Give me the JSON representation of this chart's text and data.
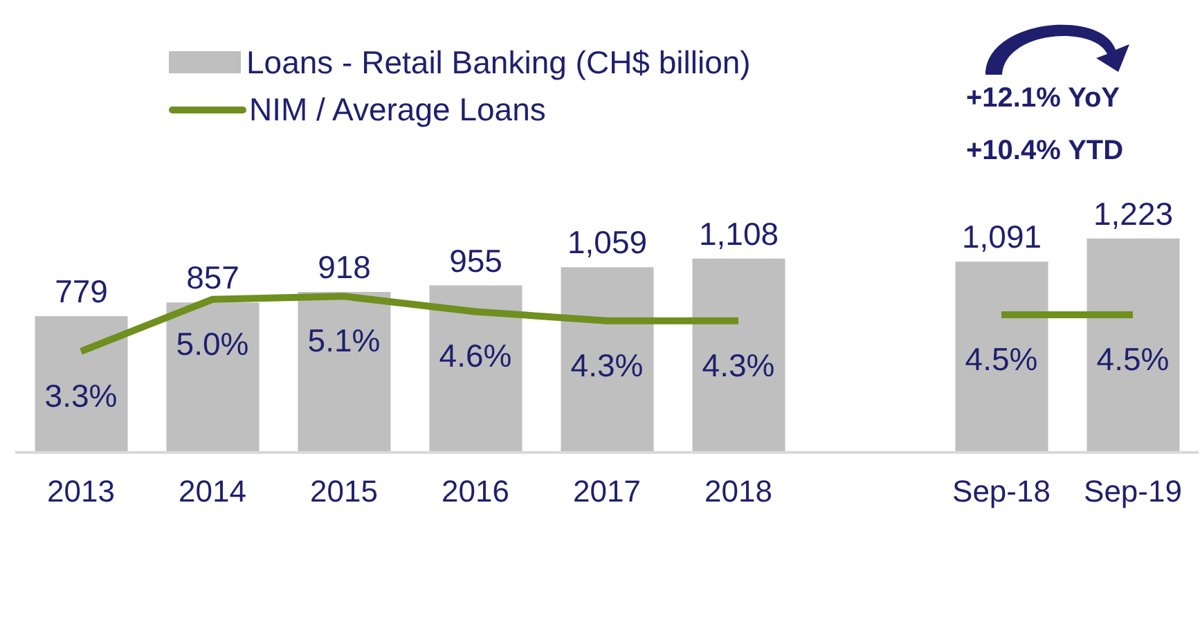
{
  "chart_data": {
    "type": "bar",
    "categories": [
      "2013",
      "2014",
      "2015",
      "2016",
      "2017",
      "2018",
      null,
      "Sep-18",
      "Sep-19"
    ],
    "series": [
      {
        "name": "Loans - Retail Banking (CH$ billion)",
        "color": "#bfbfbf",
        "values": [
          779,
          857,
          918,
          955,
          1059,
          1108,
          null,
          1091,
          1223
        ],
        "value_labels": [
          "779",
          "857",
          "918",
          "955",
          "1,059",
          "1,108",
          null,
          "1,091",
          "1,223"
        ]
      },
      {
        "name": "NIM / Average Loans",
        "type": "line",
        "axis": "y2",
        "color": "#6f8f1f",
        "values": [
          3.3,
          5.0,
          5.1,
          4.6,
          4.3,
          4.3,
          null,
          4.5,
          4.5
        ],
        "value_labels": [
          "3.3%",
          "5.0%",
          "5.1%",
          "4.6%",
          "4.3%",
          "4.3%",
          null,
          "4.5%",
          "4.5%"
        ]
      }
    ],
    "tick_labels": "x",
    "legend": "top left",
    "annotations": [
      "+12.1% YoY",
      "+10.4% YTD"
    ]
  }
}
